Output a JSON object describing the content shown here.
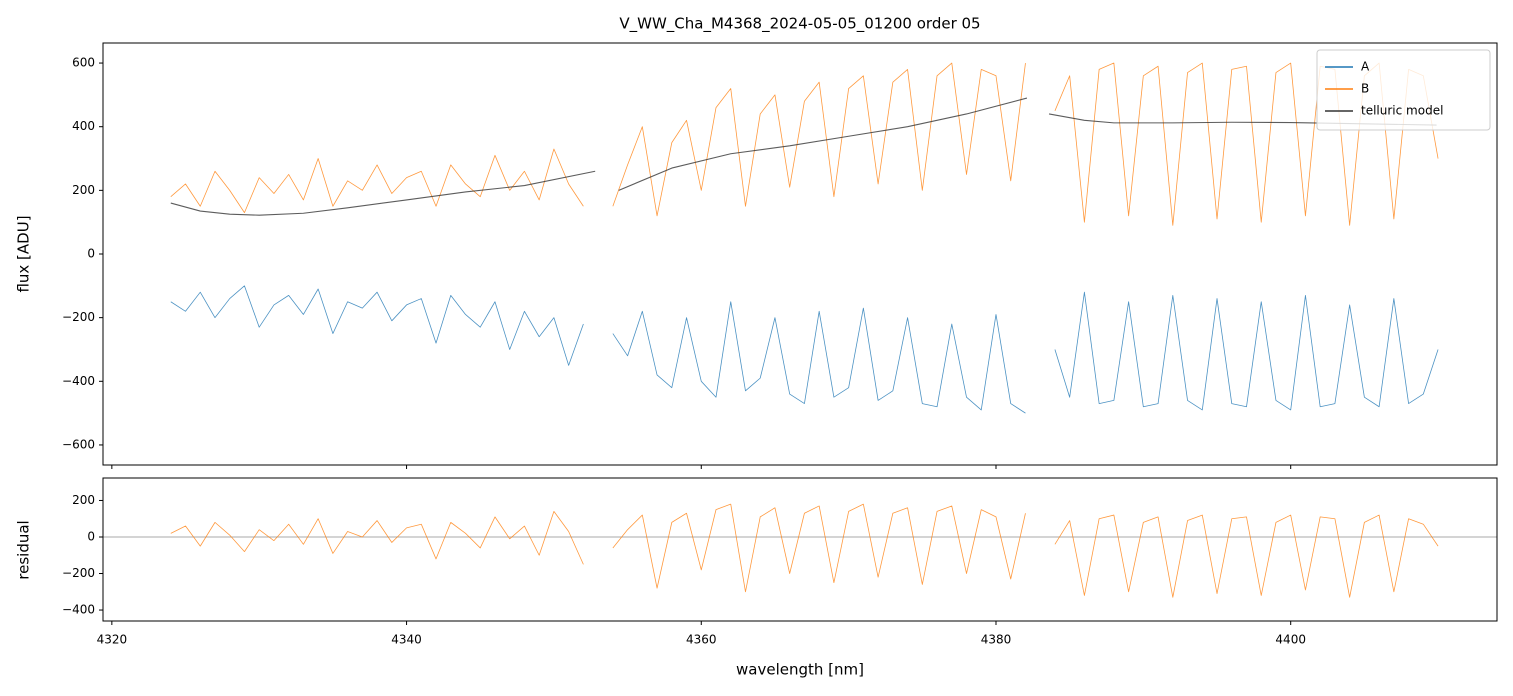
{
  "chart_data": [
    {
      "type": "line",
      "title": "V_WW_Cha_M4368_2024-05-05_01200  order 05",
      "y_label": "flux [ADU]",
      "x": [
        4324,
        4325,
        4326,
        4327,
        4328,
        4329,
        4330,
        4331,
        4332,
        4333,
        4334,
        4335,
        4336,
        4337,
        4338,
        4339,
        4340,
        4341,
        4342,
        4343,
        4344,
        4345,
        4346,
        4347,
        4348,
        4349,
        4350,
        4351,
        4352,
        4353,
        4354,
        4355,
        4356,
        4357,
        4358,
        4359,
        4360,
        4361,
        4362,
        4363,
        4364,
        4365,
        4366,
        4367,
        4368,
        4369,
        4370,
        4371,
        4372,
        4373,
        4374,
        4375,
        4376,
        4377,
        4378,
        4379,
        4380,
        4381,
        4382,
        4383,
        4384,
        4385,
        4386,
        4387,
        4388,
        4389,
        4390,
        4391,
        4392,
        4393,
        4394,
        4395,
        4396,
        4397,
        4398,
        4399,
        4400,
        4401,
        4402,
        4403,
        4404,
        4405,
        4406,
        4407,
        4408,
        4409,
        4410
      ],
      "series": [
        {
          "name": "A",
          "color": "#1f77b4",
          "values": [
            -150,
            -180,
            -120,
            -200,
            -140,
            -100,
            -230,
            -160,
            -130,
            -190,
            -110,
            -250,
            -150,
            -170,
            -120,
            -210,
            -160,
            -140,
            -280,
            -130,
            -190,
            -230,
            -150,
            -300,
            -180,
            -260,
            -200,
            -350,
            -220,
            null,
            -250,
            -320,
            -180,
            -380,
            -420,
            -200,
            -400,
            -450,
            -150,
            -430,
            -390,
            -200,
            -440,
            -470,
            -180,
            -450,
            -420,
            -170,
            -460,
            -430,
            -200,
            -470,
            -480,
            -220,
            -450,
            -490,
            -190,
            -470,
            -500,
            null,
            -300,
            -450,
            -120,
            -470,
            -460,
            -150,
            -480,
            -470,
            -130,
            -460,
            -490,
            -140,
            -470,
            -480,
            -150,
            -460,
            -490,
            -130,
            -480,
            -470,
            -160,
            -450,
            -480,
            -140,
            -470,
            -440,
            -300
          ]
        },
        {
          "name": "B",
          "color": "#ff7f0e",
          "values": [
            180,
            220,
            150,
            260,
            200,
            130,
            240,
            190,
            250,
            170,
            300,
            150,
            230,
            200,
            280,
            190,
            240,
            260,
            150,
            280,
            220,
            180,
            310,
            200,
            260,
            170,
            330,
            220,
            150,
            null,
            150,
            280,
            400,
            120,
            350,
            420,
            200,
            460,
            520,
            150,
            440,
            500,
            210,
            480,
            540,
            180,
            520,
            560,
            220,
            540,
            580,
            200,
            560,
            600,
            250,
            580,
            560,
            230,
            600,
            null,
            450,
            560,
            100,
            580,
            600,
            120,
            560,
            590,
            90,
            570,
            600,
            110,
            580,
            590,
            100,
            570,
            600,
            120,
            590,
            580,
            90,
            560,
            600,
            110,
            580,
            560,
            300
          ]
        },
        {
          "name": "telluric model",
          "color": "#333333",
          "x": [
            4324,
            4326,
            4328,
            4330,
            4333,
            4336,
            4340,
            4344,
            4348,
            4352.8,
            4353.5,
            4354.4,
            4358,
            4362,
            4366,
            4370,
            4374,
            4378,
            4382.1,
            4383,
            4383.6,
            4386,
            4388,
            4392,
            4396,
            4400,
            4404,
            4409.9
          ],
          "values": [
            160,
            135,
            125,
            122,
            128,
            145,
            170,
            195,
            215,
            260,
            null,
            200,
            270,
            315,
            340,
            370,
            400,
            440,
            490,
            null,
            440,
            420,
            412,
            412,
            414,
            413,
            410,
            405
          ]
        }
      ],
      "xlim": [
        4319.4,
        4414.0
      ],
      "xticks": [
        4320,
        4340,
        4360,
        4380,
        4400
      ],
      "ylim": [
        -663,
        663
      ],
      "yticks": [
        {
          "value": -600,
          "label": "−600"
        },
        {
          "value": -400,
          "label": "−400"
        },
        {
          "value": -200,
          "label": "−200"
        },
        0,
        200,
        400,
        600
      ],
      "legend": "upper right"
    },
    {
      "type": "line",
      "y_label": "residual",
      "x_label": "wavelength [nm]",
      "x": [
        4324,
        4325,
        4326,
        4327,
        4328,
        4329,
        4330,
        4331,
        4332,
        4333,
        4334,
        4335,
        4336,
        4337,
        4338,
        4339,
        4340,
        4341,
        4342,
        4343,
        4344,
        4345,
        4346,
        4347,
        4348,
        4349,
        4350,
        4351,
        4352,
        4353,
        4354,
        4355,
        4356,
        4357,
        4358,
        4359,
        4360,
        4361,
        4362,
        4363,
        4364,
        4365,
        4366,
        4367,
        4368,
        4369,
        4370,
        4371,
        4372,
        4373,
        4374,
        4375,
        4376,
        4377,
        4378,
        4379,
        4380,
        4381,
        4382,
        4383,
        4384,
        4385,
        4386,
        4387,
        4388,
        4389,
        4390,
        4391,
        4392,
        4393,
        4394,
        4395,
        4396,
        4397,
        4398,
        4399,
        4400,
        4401,
        4402,
        4403,
        4404,
        4405,
        4406,
        4407,
        4408,
        4409,
        4410
      ],
      "series": [
        {
          "color": "#ff7f0e",
          "values": [
            20,
            60,
            -50,
            80,
            10,
            -80,
            40,
            -20,
            70,
            -40,
            100,
            -90,
            30,
            0,
            90,
            -30,
            50,
            70,
            -120,
            80,
            20,
            -60,
            110,
            -10,
            60,
            -100,
            140,
            30,
            -150,
            null,
            -60,
            40,
            120,
            -280,
            80,
            130,
            -180,
            150,
            180,
            -300,
            110,
            160,
            -200,
            130,
            170,
            -250,
            140,
            180,
            -220,
            130,
            160,
            -260,
            140,
            170,
            -200,
            150,
            110,
            -230,
            130,
            null,
            -40,
            90,
            -320,
            100,
            120,
            -300,
            80,
            110,
            -330,
            90,
            120,
            -310,
            100,
            110,
            -320,
            80,
            120,
            -290,
            110,
            100,
            -330,
            80,
            120,
            -300,
            100,
            70,
            -50
          ]
        }
      ],
      "hline": 0,
      "xlim": [
        4319.4,
        4414.0
      ],
      "xticks": [
        4320,
        4340,
        4360,
        4380,
        4400
      ],
      "ylim": [
        -460,
        323
      ],
      "yticks": [
        {
          "value": -400,
          "label": "−400"
        },
        {
          "value": -200,
          "label": "−200"
        },
        0,
        200
      ]
    }
  ]
}
